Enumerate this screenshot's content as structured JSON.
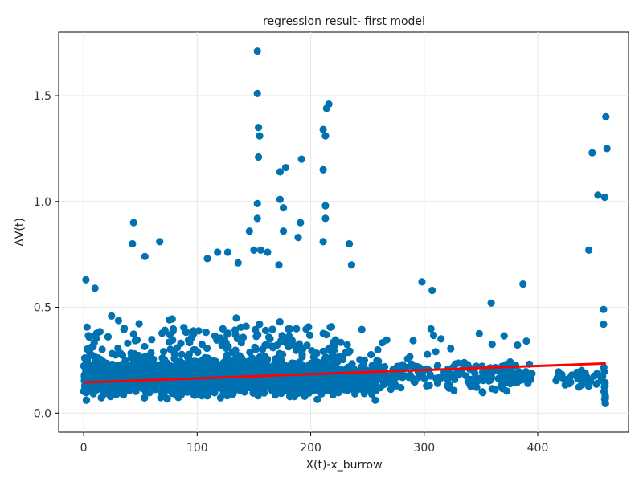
{
  "chart_data": {
    "type": "scatter",
    "title": "regression result- first model",
    "xlabel": "X(t)-x_burrow",
    "ylabel": "ΔV(t)",
    "xlim": [
      -22,
      480
    ],
    "ylim": [
      -0.09,
      1.8
    ],
    "xticks": [
      0,
      100,
      200,
      300,
      400
    ],
    "yticks": [
      0.0,
      0.5,
      1.0,
      1.5
    ],
    "xtick_labels": [
      "0",
      "100",
      "200",
      "300",
      "400"
    ],
    "ytick_labels": [
      "0.0",
      "0.5",
      "1.0",
      "1.5"
    ],
    "grid": true,
    "legend": "none",
    "point_color": "#0072b2",
    "line_color": "#ff0000",
    "regression_line": {
      "x": [
        0,
        460
      ],
      "y": [
        0.145,
        0.235
      ]
    },
    "outliers": [
      {
        "x": 2,
        "y": 0.63
      },
      {
        "x": 10,
        "y": 0.59
      },
      {
        "x": 44,
        "y": 0.9
      },
      {
        "x": 43,
        "y": 0.8
      },
      {
        "x": 54,
        "y": 0.74
      },
      {
        "x": 67,
        "y": 0.81
      },
      {
        "x": 109,
        "y": 0.73
      },
      {
        "x": 118,
        "y": 0.76
      },
      {
        "x": 127,
        "y": 0.76
      },
      {
        "x": 136,
        "y": 0.71
      },
      {
        "x": 146,
        "y": 0.86
      },
      {
        "x": 150,
        "y": 0.77
      },
      {
        "x": 153,
        "y": 0.99
      },
      {
        "x": 154,
        "y": 1.21
      },
      {
        "x": 154,
        "y": 1.35
      },
      {
        "x": 153,
        "y": 1.51
      },
      {
        "x": 153,
        "y": 1.71
      },
      {
        "x": 155,
        "y": 1.31
      },
      {
        "x": 153,
        "y": 0.92
      },
      {
        "x": 156,
        "y": 0.77
      },
      {
        "x": 162,
        "y": 0.76
      },
      {
        "x": 172,
        "y": 0.7
      },
      {
        "x": 173,
        "y": 1.01
      },
      {
        "x": 173,
        "y": 1.14
      },
      {
        "x": 176,
        "y": 0.97
      },
      {
        "x": 178,
        "y": 1.16
      },
      {
        "x": 176,
        "y": 0.86
      },
      {
        "x": 189,
        "y": 0.83
      },
      {
        "x": 191,
        "y": 0.9
      },
      {
        "x": 192,
        "y": 1.2
      },
      {
        "x": 211,
        "y": 1.34
      },
      {
        "x": 211,
        "y": 1.15
      },
      {
        "x": 213,
        "y": 1.31
      },
      {
        "x": 214,
        "y": 1.44
      },
      {
        "x": 216,
        "y": 1.46
      },
      {
        "x": 213,
        "y": 0.98
      },
      {
        "x": 213,
        "y": 0.92
      },
      {
        "x": 211,
        "y": 0.81
      },
      {
        "x": 234,
        "y": 0.8
      },
      {
        "x": 236,
        "y": 0.7
      },
      {
        "x": 298,
        "y": 0.62
      },
      {
        "x": 307,
        "y": 0.58
      },
      {
        "x": 359,
        "y": 0.52
      },
      {
        "x": 387,
        "y": 0.61
      },
      {
        "x": 445,
        "y": 0.77
      },
      {
        "x": 448,
        "y": 1.23
      },
      {
        "x": 453,
        "y": 1.03
      },
      {
        "x": 459,
        "y": 1.02
      },
      {
        "x": 460,
        "y": 1.4
      },
      {
        "x": 461,
        "y": 1.25
      },
      {
        "x": 458,
        "y": 0.49
      },
      {
        "x": 458,
        "y": 0.42
      }
    ]
  }
}
